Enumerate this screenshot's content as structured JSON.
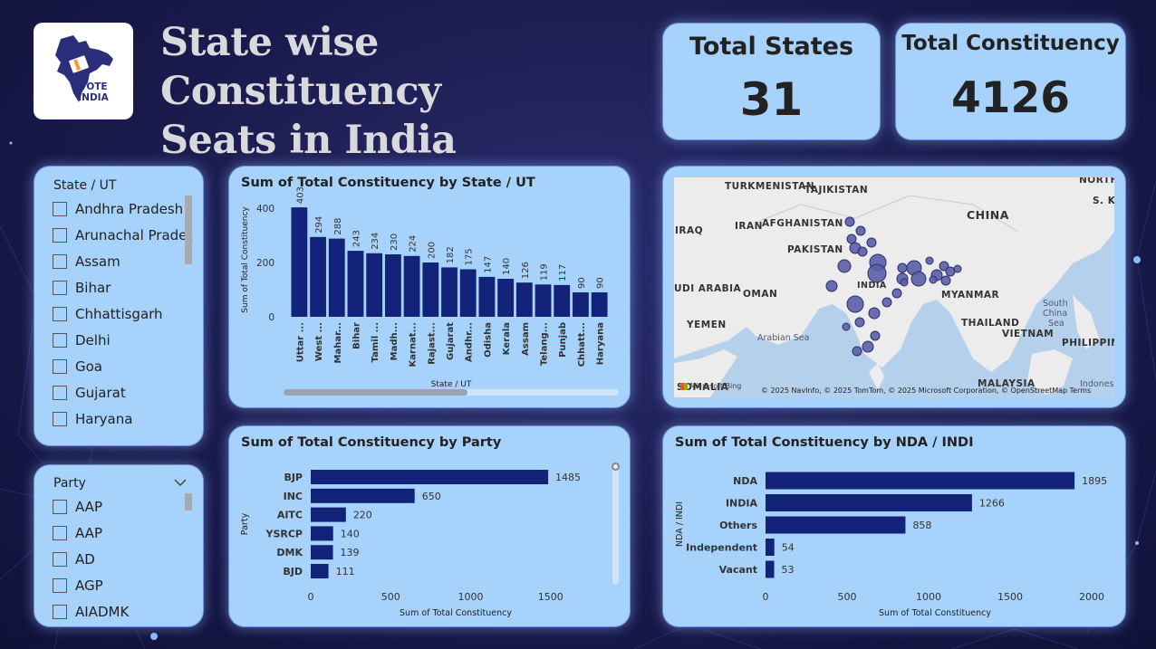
{
  "header": {
    "title_line1": "State wise Constituency",
    "title_line2": "Seats in India",
    "logo_text_line1": "VOTE",
    "logo_text_line2": "INDIA"
  },
  "kpis": {
    "total_states": {
      "label": "Total States",
      "value": "31"
    },
    "total_constituency": {
      "label": "Total Constituency",
      "value": "4126"
    }
  },
  "state_slicer": {
    "title": "State / UT",
    "items": [
      "Andhra Pradesh",
      "Arunachal Prade...",
      "Assam",
      "Bihar",
      "Chhattisgarh",
      "Delhi",
      "Goa",
      "Gujarat",
      "Haryana"
    ]
  },
  "party_slicer": {
    "title": "Party",
    "items": [
      "AAP",
      "AAP",
      "AD",
      "AGP",
      "AIADMK"
    ]
  },
  "map": {
    "labels": {
      "turkmenistan": "TURKMENISTAN",
      "tajikistan": "TAJIKISTAN",
      "china": "CHINA",
      "iran": "IRAN",
      "afghanistan": "AFGHANISTAN",
      "iraq": "IRAQ",
      "pakistan": "PAKISTAN",
      "india": "INDIA",
      "saudi": "UDI ARABIA",
      "oman": "OMAN",
      "myanmar": "MYANMAR",
      "yemen": "YEMEN",
      "thailand": "THAILAND",
      "vietnam": "VIETNAM",
      "philippin": "PHILIPPIN",
      "north": "NORTH",
      "sk": "S. K",
      "somalia": "SOMALIA",
      "malaysia": "MALAYSIA",
      "indonesia": "Indonesi",
      "arabian_sea": "Arabian Sea",
      "south_china_sea_1": "South",
      "south_china_sea_2": "China",
      "south_china_sea_3": "Sea"
    },
    "bing": "Microsoft Bing",
    "copyright": "© 2025 NavInfo, © 2025 TomTom, © 2025 Microsoft Corporation, © OpenStreetMap  Terms",
    "colors": {
      "bubble": "#5b5fa8",
      "bubble_stroke": "#2b2d6e"
    }
  },
  "colors": {
    "bar": "#14237a",
    "card_bg": "#a7d2fb",
    "text": "#222222"
  },
  "chart_data": [
    {
      "type": "bar",
      "title": "Sum of Total Constituency by State / UT",
      "xlabel": "State / UT",
      "ylabel": "Sum of Total Constituency",
      "categories": [
        "Uttar ...",
        "West ...",
        "Mahar...",
        "Bihar",
        "Tamil ...",
        "Madh...",
        "Karnat...",
        "Rajast...",
        "Gujarat",
        "Andhr...",
        "Odisha",
        "Kerala",
        "Assam",
        "Telang...",
        "Punjab",
        "Chhatt...",
        "Haryana"
      ],
      "values": [
        403,
        294,
        288,
        243,
        234,
        230,
        224,
        200,
        182,
        175,
        147,
        140,
        126,
        119,
        117,
        90,
        90
      ],
      "yticks": [
        "0",
        "200",
        "400"
      ],
      "ylim": [
        0,
        420
      ]
    },
    {
      "type": "bar",
      "orientation": "horizontal",
      "title": "Sum of Total Constituency by Party",
      "xlabel": "Sum of Total Constituency",
      "ylabel": "Party",
      "categories": [
        "BJP",
        "INC",
        "AITC",
        "YSRCP",
        "DMK",
        "BJD"
      ],
      "values": [
        1485,
        650,
        220,
        140,
        139,
        111
      ],
      "xticks": [
        "0",
        "500",
        "1000",
        "1500"
      ],
      "xlim": [
        0,
        1700
      ]
    },
    {
      "type": "bar",
      "orientation": "horizontal",
      "title": "Sum of Total Constituency by NDA / INDI",
      "xlabel": "Sum of Total Constituency",
      "ylabel": "NDA / INDI",
      "categories": [
        "NDA",
        "INDIA",
        "Others",
        "Independent",
        "Vacant"
      ],
      "values": [
        1895,
        1266,
        858,
        54,
        53
      ],
      "xticks": [
        "0",
        "500",
        "1000",
        "1500",
        "2000"
      ],
      "xlim": [
        0,
        2000
      ]
    }
  ]
}
